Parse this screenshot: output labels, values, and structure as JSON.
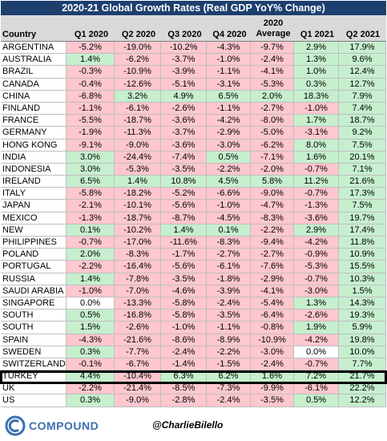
{
  "title": "2020-21 Global Growth Rates (Real GDP YoY% Change)",
  "header": {
    "country": "Country",
    "q1_2020": "Q1 2020",
    "q2_2020": "Q2 2020",
    "q3_2020": "Q3 2020",
    "q4_2020": "Q4 2020",
    "avg_line1": "2020",
    "avg_line2": "Average",
    "q1_2021": "Q1 2021",
    "q2_2021": "Q2 2021"
  },
  "colors": {
    "title_bg": "#1d3f6e",
    "positive": "#c6efce",
    "negative": "#ffc7ce",
    "header_bg": "#d9d9d9",
    "brand": "#3b6fb0"
  },
  "chart_data": {
    "type": "table",
    "columns": [
      "Country",
      "Q1 2020",
      "Q2 2020",
      "Q3 2020",
      "Q4 2020",
      "2020 Average",
      "Q1 2021",
      "Q2 2021"
    ],
    "rows": [
      [
        "ARGENTINA",
        "-5.2%",
        "-19.0%",
        "-10.2%",
        "-4.3%",
        "-9.7%",
        "2.9%",
        "17.9%"
      ],
      [
        "AUSTRALIA",
        "1.4%",
        "-6.2%",
        "-3.7%",
        "-1.0%",
        "-2.4%",
        "1.3%",
        "9.6%"
      ],
      [
        "BRAZIL",
        "-0.3%",
        "-10.9%",
        "-3.9%",
        "-1.1%",
        "-4.1%",
        "1.0%",
        "12.4%"
      ],
      [
        "CANADA",
        "-0.4%",
        "-12.6%",
        "-5.1%",
        "-3.1%",
        "-5.3%",
        "0.3%",
        "12.7%"
      ],
      [
        "CHINA",
        "-6.8%",
        "3.2%",
        "4.9%",
        "6.5%",
        "2.0%",
        "18.3%",
        "7.9%"
      ],
      [
        "FINLAND",
        "-1.1%",
        "-6.1%",
        "-2.6%",
        "-1.1%",
        "-2.7%",
        "-1.0%",
        "7.4%"
      ],
      [
        "FRANCE",
        "-5.5%",
        "-18.7%",
        "-3.6%",
        "-4.2%",
        "-8.0%",
        "1.7%",
        "18.7%"
      ],
      [
        "GERMANY",
        "-1.9%",
        "-11.3%",
        "-3.7%",
        "-2.9%",
        "-5.0%",
        "-3.1%",
        "9.2%"
      ],
      [
        "HONG KONG",
        "-9.1%",
        "-9.0%",
        "-3.6%",
        "-3.0%",
        "-6.2%",
        "8.0%",
        "7.5%"
      ],
      [
        "INDIA",
        "3.0%",
        "-24.4%",
        "-7.4%",
        "0.5%",
        "-7.1%",
        "1.6%",
        "20.1%"
      ],
      [
        "INDONESIA",
        "3.0%",
        "-5.3%",
        "-3.5%",
        "-2.2%",
        "-2.0%",
        "-0.7%",
        "7.1%"
      ],
      [
        "IRELAND",
        "6.5%",
        "1.4%",
        "10.8%",
        "4.5%",
        "5.8%",
        "11.2%",
        "21.6%"
      ],
      [
        "ITALY",
        "-5.8%",
        "-18.2%",
        "-5.2%",
        "-6.6%",
        "-9.0%",
        "-0.7%",
        "17.3%"
      ],
      [
        "JAPAN",
        "-2.1%",
        "-10.1%",
        "-5.6%",
        "-1.0%",
        "-4.7%",
        "-1.3%",
        "7.5%"
      ],
      [
        "MEXICO",
        "-1.3%",
        "-18.7%",
        "-8.7%",
        "-4.5%",
        "-8.3%",
        "-3.6%",
        "19.7%"
      ],
      [
        "NEW ZEALAND",
        "0.1%",
        "-10.2%",
        "1.4%",
        "0.1%",
        "-2.2%",
        "2.9%",
        "17.4%"
      ],
      [
        "PHILIPPINES",
        "-0.7%",
        "-17.0%",
        "-11.6%",
        "-8.3%",
        "-9.4%",
        "-4.2%",
        "11.8%"
      ],
      [
        "POLAND",
        "2.0%",
        "-8.3%",
        "-1.7%",
        "-2.7%",
        "-2.7%",
        "-0.9%",
        "10.9%"
      ],
      [
        "PORTUGAL",
        "-2.2%",
        "-16.4%",
        "-5.6%",
        "-6.1%",
        "-7.6%",
        "-5.3%",
        "15.5%"
      ],
      [
        "RUSSIA",
        "1.4%",
        "-7.8%",
        "-3.5%",
        "-1.8%",
        "-2.9%",
        "-0.7%",
        "10.3%"
      ],
      [
        "SAUDI ARABIA",
        "-1.0%",
        "-7.0%",
        "-4.6%",
        "-3.9%",
        "-4.1%",
        "-3.0%",
        "1.5%"
      ],
      [
        "SINGAPORE",
        "0.0%",
        "-13.3%",
        "-5.8%",
        "-2.4%",
        "-5.4%",
        "1.3%",
        "14.3%"
      ],
      [
        "SOUTH AFRICA",
        "0.5%",
        "-16.8%",
        "-5.8%",
        "-3.5%",
        "-6.4%",
        "-2.6%",
        "19.3%"
      ],
      [
        "SOUTH KOREA",
        "1.5%",
        "-2.6%",
        "-1.0%",
        "-1.1%",
        "-0.8%",
        "1.9%",
        "5.9%"
      ],
      [
        "SPAIN",
        "-4.3%",
        "-21.6%",
        "-8.6%",
        "-8.9%",
        "-10.9%",
        "-4.2%",
        "19.8%"
      ],
      [
        "SWEDEN",
        "0.3%",
        "-7.7%",
        "-2.4%",
        "-2.2%",
        "-3.0%",
        "0.0%",
        "10.0%"
      ],
      [
        "SWITZERLAND",
        "-0.1%",
        "-6.7%",
        "-1.4%",
        "-1.5%",
        "-2.4%",
        "-0.7%",
        "7.7%"
      ],
      [
        "TURKEY",
        "4.4%",
        "-10.4%",
        "6.3%",
        "6.2%",
        "1.6%",
        "7.2%",
        "21.7%"
      ],
      [
        "UK",
        "-2.2%",
        "-21.4%",
        "-8.5%",
        "-7.3%",
        "-9.9%",
        "-6.1%",
        "22.2%"
      ],
      [
        "US",
        "0.3%",
        "-9.0%",
        "-2.8%",
        "-2.4%",
        "-3.5%",
        "0.5%",
        "12.2%"
      ]
    ],
    "highlighted_row": "TURKEY"
  },
  "footer": {
    "logo_text": "COMPOUND",
    "logo_icon": "compound-logo-icon",
    "handle": "@CharlieBilello"
  }
}
